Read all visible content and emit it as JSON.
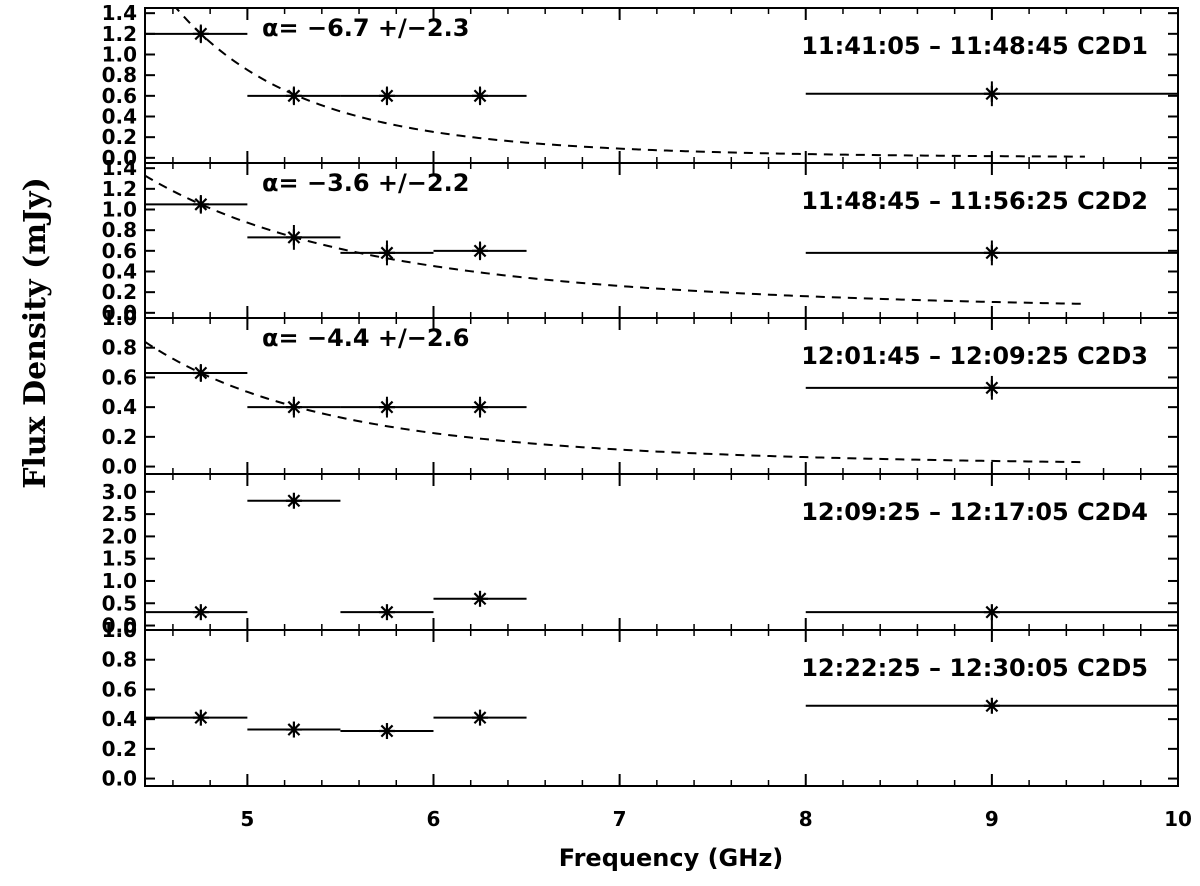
{
  "figure": {
    "ylabel": "Flux Density (mJy)",
    "xlabel": "Frequency (GHz)"
  },
  "chart_data": [
    {
      "type": "scatter",
      "label": "11:41:05 – 11:48:45  C2D1",
      "label_display": "11:41:05 – 11:48:45  C2D1",
      "annotation": "α= −6.7 +/−2.3",
      "xlim": [
        4.45,
        10
      ],
      "ylim": [
        -0.05,
        1.45
      ],
      "xticks": [
        5,
        6,
        7,
        8,
        9,
        10
      ],
      "yticks": [
        0.0,
        0.2,
        0.4,
        0.6,
        0.8,
        1.0,
        1.2,
        1.4
      ],
      "ytick_labels": [
        "0.0",
        "0.2",
        "0.4",
        "0.6",
        "0.8",
        "1.0",
        "1.2",
        "1.4"
      ],
      "points": [
        {
          "x": 4.75,
          "y": 1.2,
          "xerr": [
            4.45,
            5.0
          ],
          "yerr": 0.09
        },
        {
          "x": 5.25,
          "y": 0.6,
          "xerr": [
            5.0,
            5.5
          ],
          "yerr": 0.09
        },
        {
          "x": 5.75,
          "y": 0.6,
          "xerr": [
            5.5,
            6.0
          ],
          "yerr": 0.09
        },
        {
          "x": 6.25,
          "y": 0.6,
          "xerr": [
            6.0,
            6.5
          ],
          "yerr": 0.09
        },
        {
          "x": 9.0,
          "y": 0.62,
          "xerr": [
            8.0,
            10.0
          ],
          "yerr": 0.12
        }
      ],
      "fit": {
        "alpha": -6.7,
        "amp": 1.2,
        "x0": 4.75,
        "xrange": [
          4.45,
          9.5
        ]
      }
    },
    {
      "type": "scatter",
      "label_display": "11:48:45 – 11:56:25  C2D2",
      "annotation": "α= −3.6 +/−2.2",
      "xlim": [
        4.45,
        10
      ],
      "ylim": [
        -0.05,
        1.45
      ],
      "xticks": [
        5,
        6,
        7,
        8,
        9,
        10
      ],
      "yticks": [
        0.0,
        0.2,
        0.4,
        0.6,
        0.8,
        1.0,
        1.2,
        1.4
      ],
      "ytick_labels": [
        "0.0",
        "0.2",
        "0.4",
        "0.6",
        "0.8",
        "1.0",
        "1.2",
        "1.4"
      ],
      "points": [
        {
          "x": 4.75,
          "y": 1.05,
          "xerr": [
            4.45,
            5.0
          ],
          "yerr": 0.09
        },
        {
          "x": 5.25,
          "y": 0.73,
          "xerr": [
            5.0,
            5.5
          ],
          "yerr": 0.12
        },
        {
          "x": 5.75,
          "y": 0.58,
          "xerr": [
            5.5,
            6.0
          ],
          "yerr": 0.12
        },
        {
          "x": 6.25,
          "y": 0.6,
          "xerr": [
            6.0,
            6.5
          ],
          "yerr": 0.09
        },
        {
          "x": 9.0,
          "y": 0.58,
          "xerr": [
            8.0,
            10.0
          ],
          "yerr": 0.12
        }
      ],
      "fit": {
        "alpha": -3.6,
        "amp": 1.05,
        "x0": 4.75,
        "xrange": [
          4.45,
          9.5
        ]
      }
    },
    {
      "type": "scatter",
      "label_display": "12:01:45 – 12:09:25  C2D3",
      "annotation": "α= −4.4 +/−2.6",
      "xlim": [
        4.45,
        10
      ],
      "ylim": [
        -0.05,
        1.0
      ],
      "xticks": [
        5,
        6,
        7,
        8,
        9,
        10
      ],
      "yticks": [
        0.0,
        0.2,
        0.4,
        0.6,
        0.8,
        1.0
      ],
      "ytick_labels": [
        "0.0",
        "0.2",
        "0.4",
        "0.6",
        "0.8",
        "1.0"
      ],
      "points": [
        {
          "x": 4.75,
          "y": 0.63,
          "xerr": [
            4.45,
            5.0
          ],
          "yerr": 0.06
        },
        {
          "x": 5.25,
          "y": 0.4,
          "xerr": [
            5.0,
            5.5
          ],
          "yerr": 0.07
        },
        {
          "x": 5.75,
          "y": 0.4,
          "xerr": [
            5.5,
            6.0
          ],
          "yerr": 0.07
        },
        {
          "x": 6.25,
          "y": 0.4,
          "xerr": [
            6.0,
            6.5
          ],
          "yerr": 0.07
        },
        {
          "x": 9.0,
          "y": 0.53,
          "xerr": [
            8.0,
            10.0
          ],
          "yerr": 0.08
        }
      ],
      "fit": {
        "alpha": -4.4,
        "amp": 0.63,
        "x0": 4.75,
        "xrange": [
          4.45,
          9.5
        ]
      }
    },
    {
      "type": "scatter",
      "label_display": "12:09:25 – 12:17:05  C2D4",
      "xlim": [
        4.45,
        10
      ],
      "ylim": [
        -0.1,
        3.4
      ],
      "xticks": [
        5,
        6,
        7,
        8,
        9,
        10
      ],
      "yticks": [
        0.0,
        0.5,
        1.0,
        1.5,
        2.0,
        2.5,
        3.0
      ],
      "ytick_labels": [
        "0.0",
        "0.5",
        "1.0",
        "1.5",
        "2.0",
        "2.5",
        "3.0"
      ],
      "points": [
        {
          "x": 4.75,
          "y": 0.3,
          "xerr": [
            4.45,
            5.0
          ],
          "yerr": 0.0
        },
        {
          "x": 5.25,
          "y": 2.8,
          "xerr": [
            5.0,
            5.5
          ],
          "yerr": 0.0
        },
        {
          "x": 5.75,
          "y": 0.3,
          "xerr": [
            5.5,
            6.0
          ],
          "yerr": 0.0
        },
        {
          "x": 6.25,
          "y": 0.6,
          "xerr": [
            6.0,
            6.5
          ],
          "yerr": 0.0
        },
        {
          "x": 9.0,
          "y": 0.3,
          "xerr": [
            8.0,
            10.0
          ],
          "yerr": 0.0
        }
      ]
    },
    {
      "type": "scatter",
      "label_display": "12:22:25 – 12:30:05  C2D5",
      "xlim": [
        4.45,
        10
      ],
      "ylim": [
        -0.05,
        1.0
      ],
      "xticks": [
        5,
        6,
        7,
        8,
        9,
        10
      ],
      "yticks": [
        0.0,
        0.2,
        0.4,
        0.6,
        0.8,
        1.0
      ],
      "ytick_labels": [
        "0.0",
        "0.2",
        "0.4",
        "0.6",
        "0.8",
        "1.0"
      ],
      "points": [
        {
          "x": 4.75,
          "y": 0.41,
          "xerr": [
            4.45,
            5.0
          ],
          "yerr": 0.0
        },
        {
          "x": 5.25,
          "y": 0.33,
          "xerr": [
            5.0,
            5.5
          ],
          "yerr": 0.0
        },
        {
          "x": 5.75,
          "y": 0.32,
          "xerr": [
            5.5,
            6.0
          ],
          "yerr": 0.0
        },
        {
          "x": 6.25,
          "y": 0.41,
          "xerr": [
            6.0,
            6.5
          ],
          "yerr": 0.0
        },
        {
          "x": 9.0,
          "y": 0.49,
          "xerr": [
            8.0,
            10.0
          ],
          "yerr": 0.0
        }
      ]
    }
  ]
}
